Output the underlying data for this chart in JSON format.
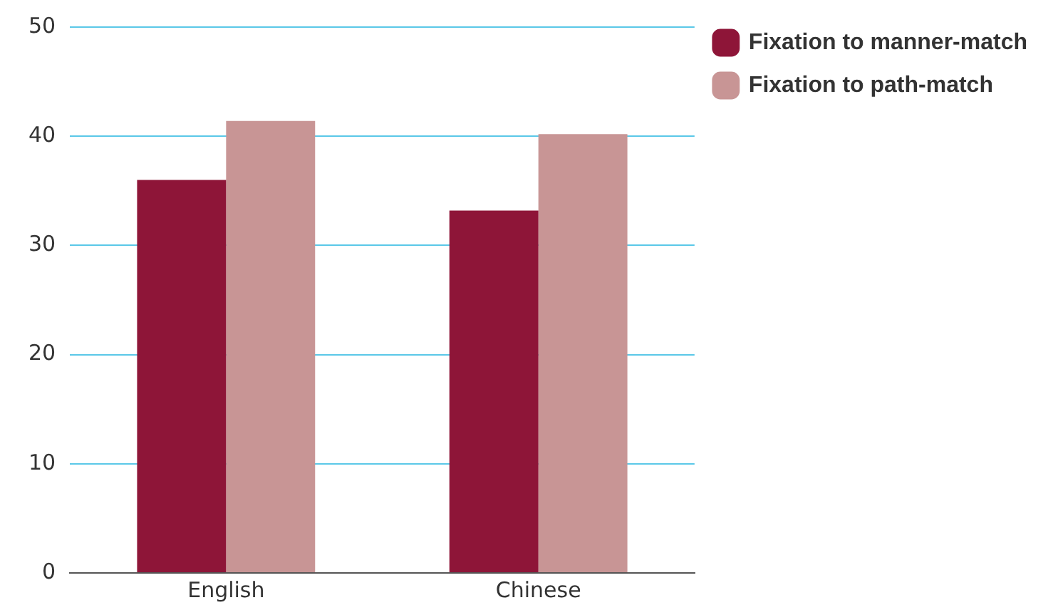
{
  "chart_data": {
    "type": "bar",
    "categories": [
      "English",
      "Chinese"
    ],
    "series": [
      {
        "name": "Fixation to manner-match",
        "color": "#8e1538",
        "values": [
          36.0,
          33.2
        ]
      },
      {
        "name": "Fixation to path-match",
        "color": "#c89595",
        "values": [
          41.4,
          40.2
        ]
      }
    ],
    "ylim": [
      0,
      50
    ],
    "yticks": [
      0,
      10,
      20,
      30,
      40,
      50
    ],
    "grid": "y",
    "legend": "top right"
  }
}
